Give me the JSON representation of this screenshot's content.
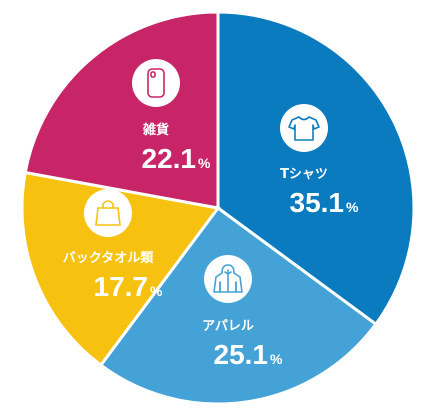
{
  "chart_data": {
    "type": "pie",
    "unit": "%",
    "slices": [
      {
        "label": "Tシャツ",
        "value": 35.1,
        "value_text": "35.1",
        "color": "#0b7bbf",
        "icon": "t-shirt-icon"
      },
      {
        "label": "アパレル",
        "value": 25.1,
        "value_text": "25.1",
        "color": "#45a2d6",
        "icon": "hooded-jacket-icon"
      },
      {
        "label": "バックタオル類",
        "value": 17.7,
        "value_text": "17.7",
        "color": "#f6c20f",
        "icon": "tote-bag-icon"
      },
      {
        "label": "雑貨",
        "value": 22.1,
        "value_text": "22.1",
        "color": "#c82468",
        "icon": "phone-case-icon"
      }
    ]
  }
}
